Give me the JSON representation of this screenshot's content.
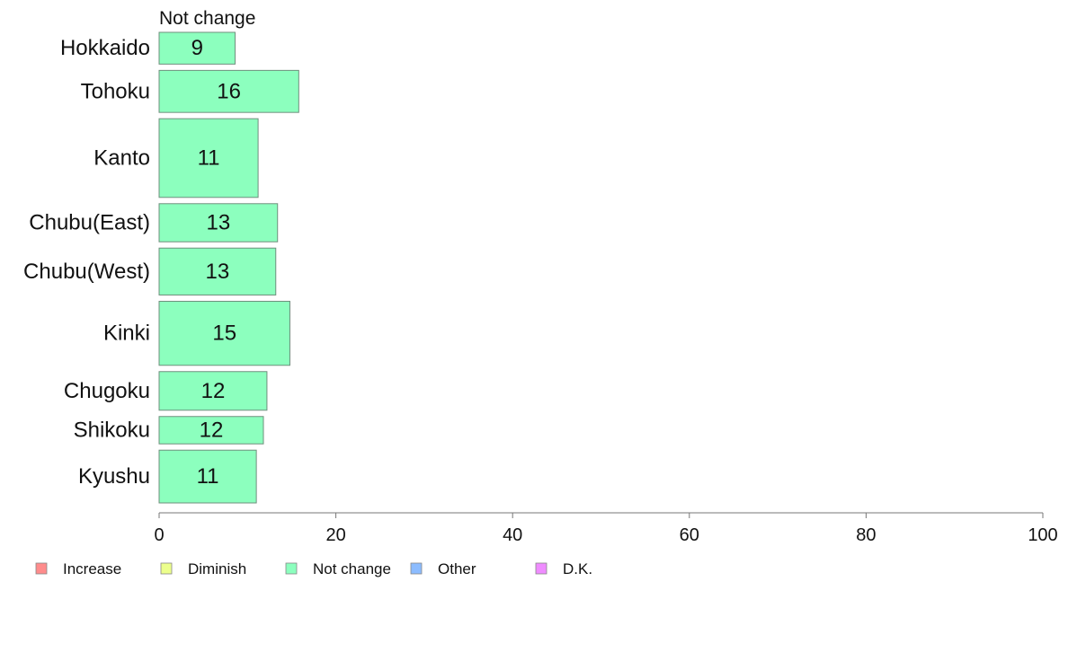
{
  "chart_data": {
    "type": "bar",
    "orientation": "horizontal",
    "title": "Not change",
    "categories": [
      "Hokkaido",
      "Tohoku",
      "Kanto",
      "Chubu(East)",
      "Chubu(West)",
      "Kinki",
      "Chugoku",
      "Shikoku",
      "Kyushu"
    ],
    "values": [
      8.6,
      15.8,
      11.2,
      13.4,
      13.2,
      14.8,
      12.2,
      11.8,
      11.0
    ],
    "value_labels": [
      "9",
      "16",
      "11",
      "13",
      "13",
      "15",
      "12",
      "12",
      "11"
    ],
    "relative_widths": [
      0.65,
      0.86,
      1.61,
      0.78,
      0.96,
      1.31,
      0.79,
      0.56,
      1.08
    ],
    "xlim": [
      0,
      100
    ],
    "xticks": [
      0,
      20,
      40,
      60,
      80,
      100
    ],
    "xtick_labels": [
      "0",
      "20",
      "40",
      "60",
      "80",
      "100"
    ],
    "grid": false,
    "legend_position": "bottom",
    "legend": [
      {
        "label": "Increase",
        "color": "#ff8c8c"
      },
      {
        "label": "Diminish",
        "color": "#ecff8c"
      },
      {
        "label": "Not change",
        "color": "#8cffbe"
      },
      {
        "label": "Other",
        "color": "#8cbcff"
      },
      {
        "label": "D.K.",
        "color": "#ef8cff"
      }
    ],
    "bar_color": "#8cffbe",
    "bar_stroke": "#6f8f7d"
  }
}
